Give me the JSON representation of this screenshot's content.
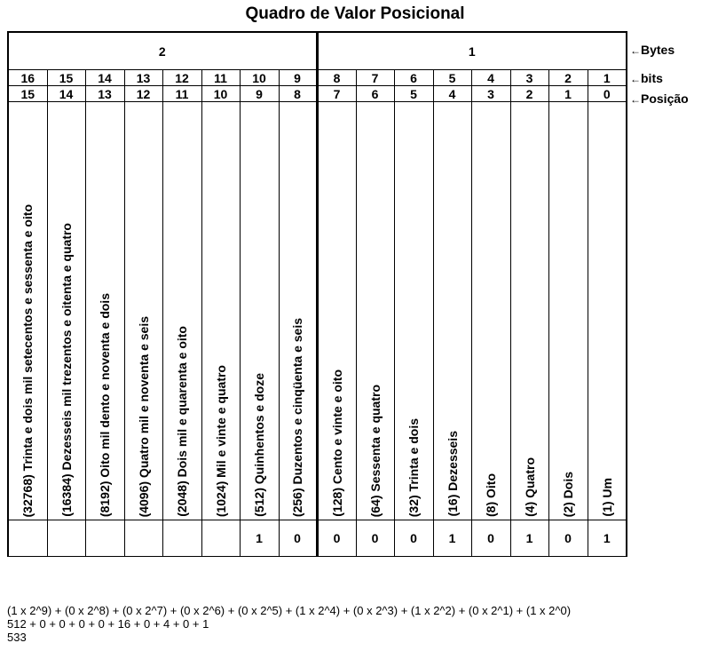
{
  "title": "Quadro de Valor Posicional",
  "bytes": [
    "2",
    "1"
  ],
  "bits": [
    "16",
    "15",
    "14",
    "13",
    "12",
    "11",
    "10",
    "9",
    "8",
    "7",
    "6",
    "5",
    "4",
    "3",
    "2",
    "1"
  ],
  "positions": [
    "15",
    "14",
    "13",
    "12",
    "11",
    "10",
    "9",
    "8",
    "7",
    "6",
    "5",
    "4",
    "3",
    "2",
    "1",
    "0"
  ],
  "place_values": [
    "(32768) Trinta e dois mil setecentos e sessenta e oito",
    "(16384) Dezesseis mil trezentos e oitenta e quatro",
    "(8192) Oito mil dento e noventa e dois",
    "(4096) Quatro mil e noventa e seis",
    "(2048) Dois mil e quarenta e oito",
    "(1024) Mil e vinte e quatro",
    "(512) Quinhentos e doze",
    "(256) Duzentos e cinqüenta e seis",
    "(128) Cento e vinte e oito",
    "(64) Sessenta e quatro",
    "(32) Trinta e dois",
    "(16) Dezesseis",
    "(8) Oito",
    "(4) Quatro",
    "(2) Dois",
    "(1) Um"
  ],
  "binary_values": [
    "",
    "",
    "",
    "",
    "",
    "",
    "1",
    "0",
    "0",
    "0",
    "0",
    "1",
    "0",
    "1",
    "0",
    "1"
  ],
  "row_labels": {
    "bytes": "Bytes",
    "bits": "bits",
    "position": "Posição",
    "arrow": "←"
  },
  "calculation": {
    "line1": "(1 x 2^9) + (0 x 2^8) + (0 x 2^7) + (0 x 2^6) + (0 x 2^5) + (1 x 2^4) + (0 x 2^3) + (1 x 2^2) + (0 x 2^1) + (1 x 2^0)",
    "line2": "512 + 0 + 0 + 0 + 0 + 16 + 0 + 4 + 0 + 1",
    "line3": "533"
  }
}
